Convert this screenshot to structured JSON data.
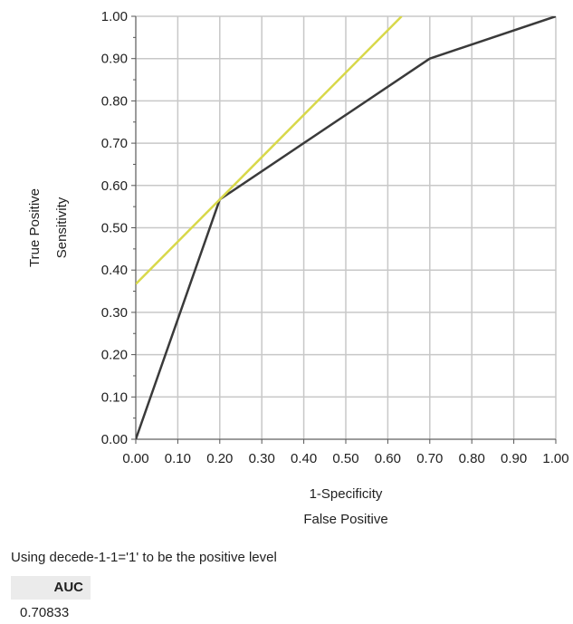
{
  "chart_data": {
    "type": "line",
    "xlabel_lines": [
      "1-Specificity",
      "False Positive"
    ],
    "ylabel_lines": [
      "True Positive",
      "Sensitivity"
    ],
    "xlim": [
      0,
      1
    ],
    "ylim": [
      0,
      1
    ],
    "x_ticks": [
      "0.00",
      "0.10",
      "0.20",
      "0.30",
      "0.40",
      "0.50",
      "0.60",
      "0.70",
      "0.80",
      "0.90",
      "1.00"
    ],
    "y_ticks": [
      "0.00",
      "0.10",
      "0.20",
      "0.30",
      "0.40",
      "0.50",
      "0.60",
      "0.70",
      "0.80",
      "0.90",
      "1.00"
    ],
    "grid": true,
    "series": [
      {
        "color": "#3a3a3a",
        "x": [
          0.0,
          0.2,
          0.7,
          1.0
        ],
        "y": [
          0.0,
          0.567,
          0.9,
          1.0
        ]
      },
      {
        "color": "#d8d84a",
        "x": [
          0.0,
          0.633
        ],
        "y": [
          0.367,
          1.0
        ]
      }
    ]
  },
  "positive_level_note": "Using decede-1-1='1' to be the positive level",
  "auc_table": {
    "header": "AUC",
    "value": "0.70833"
  }
}
